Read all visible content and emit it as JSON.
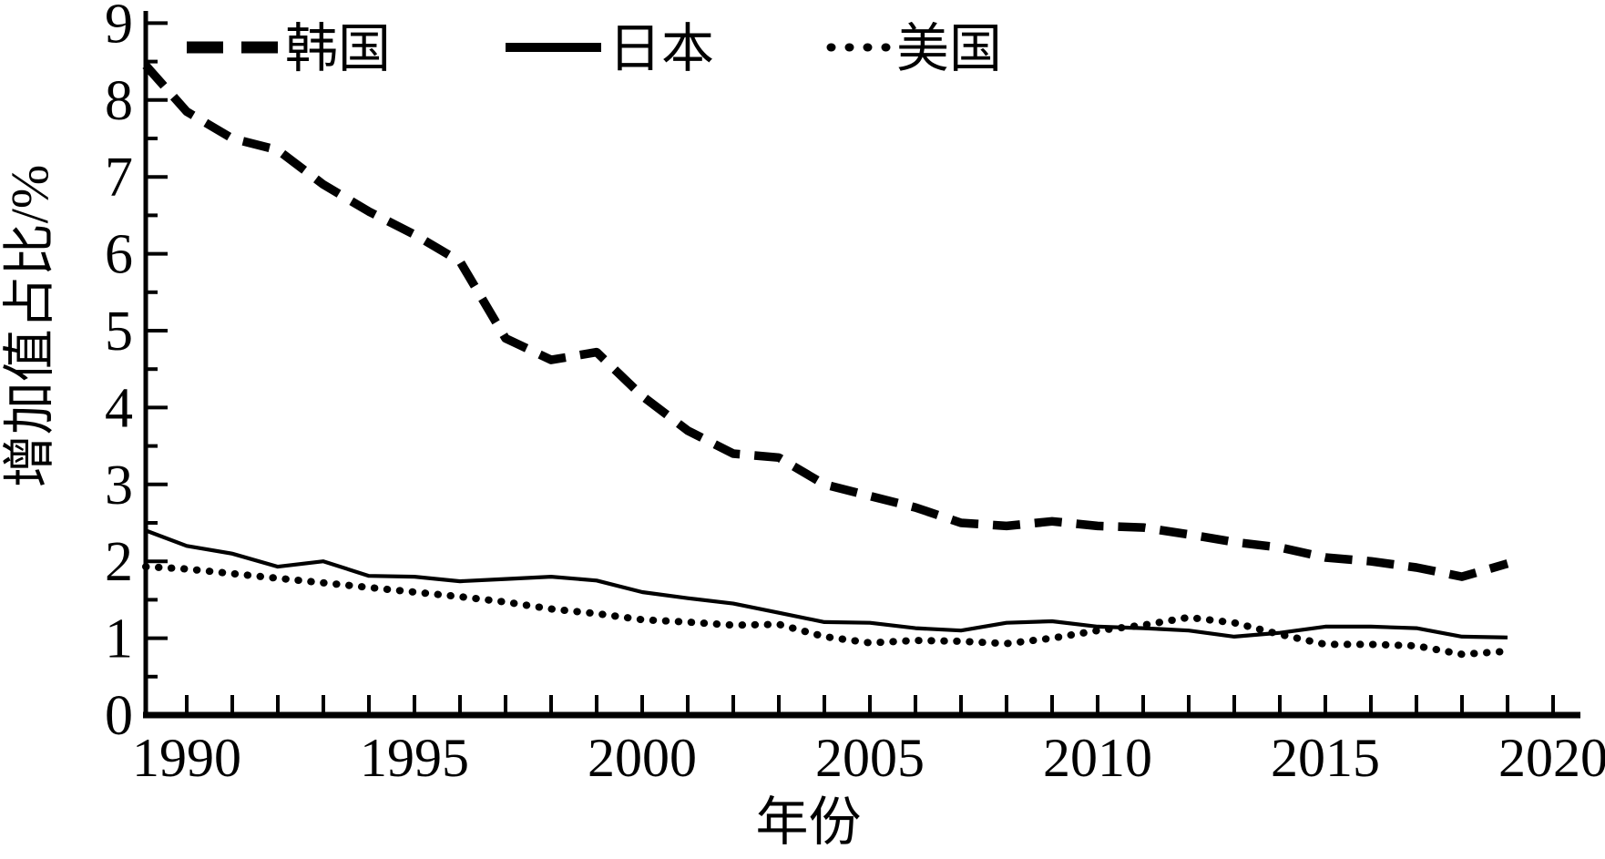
{
  "figure": {
    "background": "#ffffff",
    "ink_color": "#000000"
  },
  "chart_data": {
    "type": "line",
    "title": "",
    "xlabel": "年份",
    "ylabel": "增加值占比/%",
    "grid": false,
    "legend_position": "top-inside",
    "xlim": [
      1989.1,
      2020.6
    ],
    "ylim": [
      0,
      9
    ],
    "x_tick_step": 1,
    "x_labeled_ticks": [
      1990,
      1995,
      2000,
      2005,
      2010,
      2015,
      2020
    ],
    "x_tick_labels": [
      "1990",
      "1995",
      "2000",
      "2005",
      "2010",
      "2015",
      "2020"
    ],
    "y_major_tick_step": 1,
    "y_minor_tick_step": 0.5,
    "y_tick_labels": [
      "0",
      "1",
      "2",
      "3",
      "4",
      "5",
      "6",
      "7",
      "8",
      "9"
    ],
    "x": [
      1989.1,
      1990,
      1991,
      1992,
      1993,
      1994,
      1995,
      1996,
      1997,
      1998,
      1999,
      2000,
      2001,
      2002,
      2003,
      2004,
      2005,
      2006,
      2007,
      2008,
      2009,
      2010,
      2011,
      2012,
      2013,
      2014,
      2015,
      2016,
      2017,
      2018,
      2019
    ],
    "series": [
      {
        "id": "korea",
        "name": "韩国",
        "line_style": "dashed",
        "color": "#000000",
        "values": [
          8.45,
          7.85,
          7.5,
          7.35,
          6.9,
          6.55,
          6.25,
          5.9,
          4.9,
          4.62,
          4.72,
          4.15,
          3.7,
          3.4,
          3.35,
          3.0,
          2.85,
          2.7,
          2.5,
          2.46,
          2.52,
          2.46,
          2.44,
          2.35,
          2.25,
          2.18,
          2.05,
          2.0,
          1.92,
          1.8,
          1.97
        ]
      },
      {
        "id": "japan",
        "name": "日本",
        "line_style": "solid",
        "color": "#000000",
        "values": [
          2.4,
          2.2,
          2.1,
          1.93,
          2.0,
          1.81,
          1.8,
          1.74,
          1.77,
          1.8,
          1.75,
          1.6,
          1.52,
          1.45,
          1.33,
          1.21,
          1.2,
          1.13,
          1.1,
          1.2,
          1.22,
          1.15,
          1.13,
          1.1,
          1.02,
          1.07,
          1.15,
          1.15,
          1.13,
          1.02,
          1.01
        ]
      },
      {
        "id": "usa",
        "name": "美国",
        "line_style": "dotted",
        "color": "#000000",
        "values": [
          1.93,
          1.9,
          1.84,
          1.78,
          1.72,
          1.66,
          1.6,
          1.54,
          1.47,
          1.38,
          1.32,
          1.24,
          1.21,
          1.17,
          1.18,
          1.02,
          0.94,
          0.97,
          0.96,
          0.93,
          1.0,
          1.1,
          1.17,
          1.27,
          1.2,
          1.05,
          0.92,
          0.92,
          0.9,
          0.79,
          0.83
        ]
      }
    ]
  }
}
